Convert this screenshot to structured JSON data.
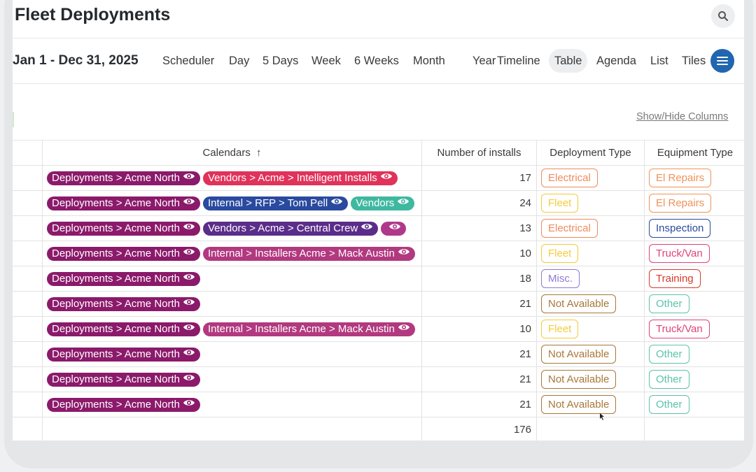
{
  "page": {
    "title": "Fleet Deployments"
  },
  "toolbar": {
    "date_range": "Jan 1 - Dec 31, 2025",
    "views": [
      "Scheduler",
      "Day",
      "5 Days",
      "Week",
      "6 Weeks",
      "Month",
      "Year",
      "Timeline",
      "Table",
      "Agenda",
      "List",
      "Tiles"
    ],
    "active_view": "Table",
    "search_icon": "search-icon",
    "menu_icon": "hamburger-menu-icon"
  },
  "show_hide_columns": "Show/Hide Columns",
  "table": {
    "columns": {
      "calendars": "Calendars",
      "sort_indicator": "↑",
      "installs": "Number of installs",
      "deployment_type": "Deployment Type",
      "equipment_type": "Equipment Type"
    },
    "rows": [
      {
        "calendars": [
          "Deployments > Acme North",
          "Vendors > Acme > Intelligent Installs"
        ],
        "installs": "17",
        "deployment_type": "Electrical",
        "equipment_type": "El Repairs"
      },
      {
        "calendars": [
          "Deployments > Acme North",
          "Internal > RFP > Tom Pell",
          "Vendors"
        ],
        "installs": "24",
        "deployment_type": "Fleet",
        "equipment_type": "El Repairs"
      },
      {
        "calendars": [
          "Deployments > Acme North",
          "Vendors > Acme > Central Crew",
          ""
        ],
        "installs": "13",
        "deployment_type": "Electrical",
        "equipment_type": "Inspection"
      },
      {
        "calendars": [
          "Deployments > Acme North",
          "Internal > Installers Acme > Mack Austin"
        ],
        "installs": "10",
        "deployment_type": "Fleet",
        "equipment_type": "Truck/Van"
      },
      {
        "calendars": [
          "Deployments > Acme North"
        ],
        "installs": "18",
        "deployment_type": "Misc.",
        "equipment_type": "Training"
      },
      {
        "calendars": [
          "Deployments > Acme North"
        ],
        "installs": "21",
        "deployment_type": "Not Available",
        "equipment_type": "Other"
      },
      {
        "calendars": [
          "Deployments > Acme North",
          "Internal > Installers Acme > Mack Austin"
        ],
        "installs": "10",
        "deployment_type": "Fleet",
        "equipment_type": "Truck/Van"
      },
      {
        "calendars": [
          "Deployments > Acme North"
        ],
        "installs": "21",
        "deployment_type": "Not Available",
        "equipment_type": "Other"
      },
      {
        "calendars": [
          "Deployments > Acme North"
        ],
        "installs": "21",
        "deployment_type": "Not Available",
        "equipment_type": "Other"
      },
      {
        "calendars": [
          "Deployments > Acme North"
        ],
        "installs": "21",
        "deployment_type": "Not Available",
        "equipment_type": "Other"
      }
    ],
    "total_installs": "176"
  },
  "colors": {
    "calendar_chips": {
      "Deployments > Acme North": "#8b1a6b",
      "Vendors > Acme > Intelligent Installs": "#e0325a",
      "Internal > RFP > Tom Pell": "#2a4aa0",
      "Vendors": "#3fb8a0",
      "Vendors > Acme > Central Crew": "#5b2d8a",
      "": "#b0388a",
      "Internal > Installers Acme > Mack Austin": "#b2397f"
    },
    "deployment_types": {
      "Electrical": "#f08a5d",
      "Fleet": "#f2cc3b",
      "Misc.": "#8f7ad6",
      "Not Available": "#a8773a"
    },
    "equipment_types": {
      "El Repairs": "#f0935a",
      "Inspection": "#2a4aa0",
      "Truck/Van": "#e0427a",
      "Training": "#d63a2a",
      "Other": "#5ac3aa"
    },
    "menu_button": "#2166b0"
  }
}
